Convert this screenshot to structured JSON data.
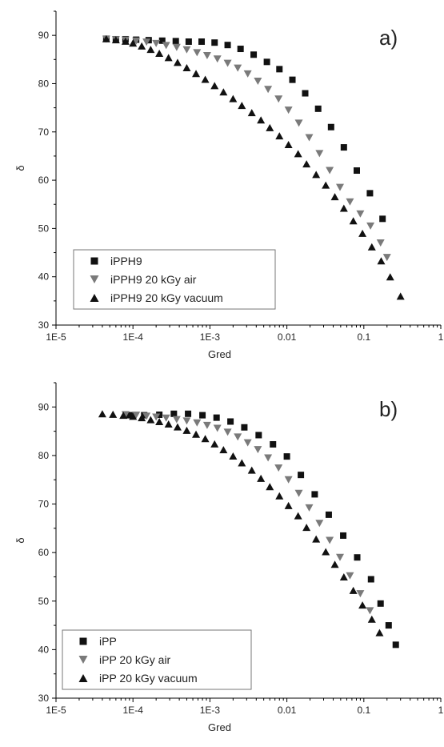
{
  "chart_data": [
    {
      "type": "scatter",
      "panel_label": "a)",
      "xlabel": "Gred",
      "ylabel": "δ",
      "xscale": "log",
      "xlim": [
        1e-05,
        1
      ],
      "ylim": [
        30,
        95
      ],
      "xticks": [
        1e-05,
        0.0001,
        0.001,
        0.01,
        0.1,
        1
      ],
      "xtick_labels": [
        "1E-5",
        "1E-4",
        "1E-3",
        "0.01",
        "0.1",
        "1"
      ],
      "yticks": [
        30,
        40,
        50,
        60,
        70,
        80,
        90
      ],
      "ytick_labels": [
        "30",
        "40",
        "50",
        "60",
        "70",
        "80",
        "90"
      ],
      "legend_position": "bottom-left",
      "series": [
        {
          "name": "iPPH9",
          "marker": "square",
          "color": "#111111",
          "x": [
            4.5e-05,
            6e-05,
            8e-05,
            0.00011,
            0.00016,
            0.00024,
            0.00036,
            0.00053,
            0.00078,
            0.00115,
            0.0017,
            0.0025,
            0.0037,
            0.0055,
            0.008,
            0.0118,
            0.0173,
            0.0255,
            0.0375,
            0.055,
            0.081,
            0.12,
            0.175
          ],
          "y": [
            89.3,
            89.2,
            89.2,
            89.1,
            89.0,
            88.9,
            88.8,
            88.7,
            88.7,
            88.5,
            88.0,
            87.2,
            86.0,
            84.5,
            83.0,
            80.8,
            78.0,
            74.8,
            71.0,
            66.8,
            62.0,
            57.3,
            52.0
          ]
        },
        {
          "name": "iPPH9 20 kGy air",
          "marker": "triangle-down",
          "color": "#7a7a7a",
          "x": [
            4.5e-05,
            6e-05,
            8e-05,
            0.00011,
            0.00015,
            0.0002,
            0.00027,
            0.00037,
            0.0005,
            0.00068,
            0.00092,
            0.00125,
            0.0017,
            0.0023,
            0.0031,
            0.0042,
            0.0057,
            0.0078,
            0.0105,
            0.0143,
            0.0195,
            0.0265,
            0.036,
            0.049,
            0.066,
            0.09,
            0.122,
            0.165,
            0.2
          ],
          "y": [
            89.2,
            89.1,
            89.0,
            88.8,
            88.6,
            88.3,
            87.9,
            87.5,
            87.0,
            86.4,
            85.8,
            85.1,
            84.2,
            83.2,
            82.0,
            80.5,
            78.8,
            76.8,
            74.5,
            71.8,
            68.8,
            65.5,
            62.0,
            58.5,
            55.5,
            53.0,
            50.5,
            47.0,
            44.0
          ]
        },
        {
          "name": "iPPH9 20 kGy vacuum",
          "marker": "triangle-up",
          "color": "#111111",
          "x": [
            4.5e-05,
            6e-05,
            8e-05,
            0.0001,
            0.00013,
            0.00017,
            0.00022,
            0.00029,
            0.00038,
            0.0005,
            0.00066,
            0.00087,
            0.00115,
            0.0015,
            0.002,
            0.0026,
            0.0035,
            0.0046,
            0.006,
            0.008,
            0.0105,
            0.014,
            0.018,
            0.024,
            0.032,
            0.042,
            0.055,
            0.073,
            0.096,
            0.127,
            0.168,
            0.22,
            0.3
          ],
          "y": [
            89.3,
            89.1,
            88.8,
            88.4,
            87.8,
            87.1,
            86.3,
            85.4,
            84.4,
            83.3,
            82.1,
            80.9,
            79.6,
            78.3,
            76.9,
            75.5,
            74.0,
            72.5,
            70.9,
            69.2,
            67.4,
            65.5,
            63.4,
            61.2,
            59.0,
            56.6,
            54.2,
            51.6,
            49.0,
            46.2,
            43.3,
            40.0,
            36.0
          ]
        }
      ]
    },
    {
      "type": "scatter",
      "panel_label": "b)",
      "xlabel": "Gred",
      "ylabel": "δ",
      "xscale": "log",
      "xlim": [
        1e-05,
        1
      ],
      "ylim": [
        30,
        95
      ],
      "xticks": [
        1e-05,
        0.0001,
        0.001,
        0.01,
        0.1,
        1
      ],
      "xtick_labels": [
        "1E-5",
        "1E-4",
        "1E-3",
        "0.01",
        "0.1",
        "1"
      ],
      "yticks": [
        30,
        40,
        50,
        60,
        70,
        80,
        90
      ],
      "ytick_labels": [
        "30",
        "40",
        "50",
        "60",
        "70",
        "80",
        "90"
      ],
      "legend_position": "bottom-left",
      "series": [
        {
          "name": "iPP",
          "marker": "square",
          "color": "#111111",
          "x": [
            9e-05,
            0.00014,
            0.00022,
            0.00034,
            0.00052,
            0.0008,
            0.00122,
            0.00185,
            0.0028,
            0.0043,
            0.0066,
            0.01,
            0.0152,
            0.023,
            0.035,
            0.054,
            0.082,
            0.124,
            0.165,
            0.21,
            0.26
          ],
          "y": [
            88.3,
            88.3,
            88.4,
            88.6,
            88.6,
            88.3,
            87.8,
            87.0,
            85.8,
            84.2,
            82.3,
            79.8,
            76.0,
            72.0,
            67.8,
            63.5,
            59.0,
            54.5,
            49.5,
            45.0,
            41.0
          ]
        },
        {
          "name": "iPP 20 kGy air",
          "marker": "triangle-down",
          "color": "#7a7a7a",
          "x": [
            8e-05,
            0.00011,
            0.00015,
            0.0002,
            0.00027,
            0.00037,
            0.0005,
            0.00068,
            0.00092,
            0.00125,
            0.0017,
            0.0023,
            0.0031,
            0.0042,
            0.0057,
            0.0078,
            0.0105,
            0.0143,
            0.0195,
            0.0265,
            0.036,
            0.049,
            0.066,
            0.09,
            0.12
          ],
          "y": [
            88.4,
            88.3,
            88.1,
            87.9,
            87.7,
            87.4,
            87.1,
            86.7,
            86.2,
            85.6,
            84.8,
            83.8,
            82.6,
            81.2,
            79.5,
            77.4,
            75.0,
            72.2,
            69.2,
            66.0,
            62.5,
            59.0,
            55.2,
            51.5,
            48.0
          ]
        },
        {
          "name": "iPP 20 kGy vacuum",
          "marker": "triangle-up",
          "color": "#111111",
          "x": [
            4e-05,
            5.5e-05,
            7.5e-05,
            0.0001,
            0.00013,
            0.00017,
            0.00022,
            0.00029,
            0.00038,
            0.0005,
            0.00066,
            0.00087,
            0.00115,
            0.0015,
            0.002,
            0.0026,
            0.0035,
            0.0046,
            0.006,
            0.008,
            0.0105,
            0.014,
            0.018,
            0.024,
            0.032,
            0.042,
            0.055,
            0.073,
            0.096,
            0.127,
            0.16
          ],
          "y": [
            88.6,
            88.5,
            88.3,
            88.1,
            87.8,
            87.4,
            87.0,
            86.5,
            85.9,
            85.2,
            84.4,
            83.5,
            82.4,
            81.2,
            79.9,
            78.5,
            77.0,
            75.3,
            73.6,
            71.7,
            69.7,
            67.6,
            65.2,
            62.8,
            60.2,
            57.6,
            55.0,
            52.2,
            49.2,
            46.3,
            43.5
          ]
        }
      ]
    }
  ]
}
